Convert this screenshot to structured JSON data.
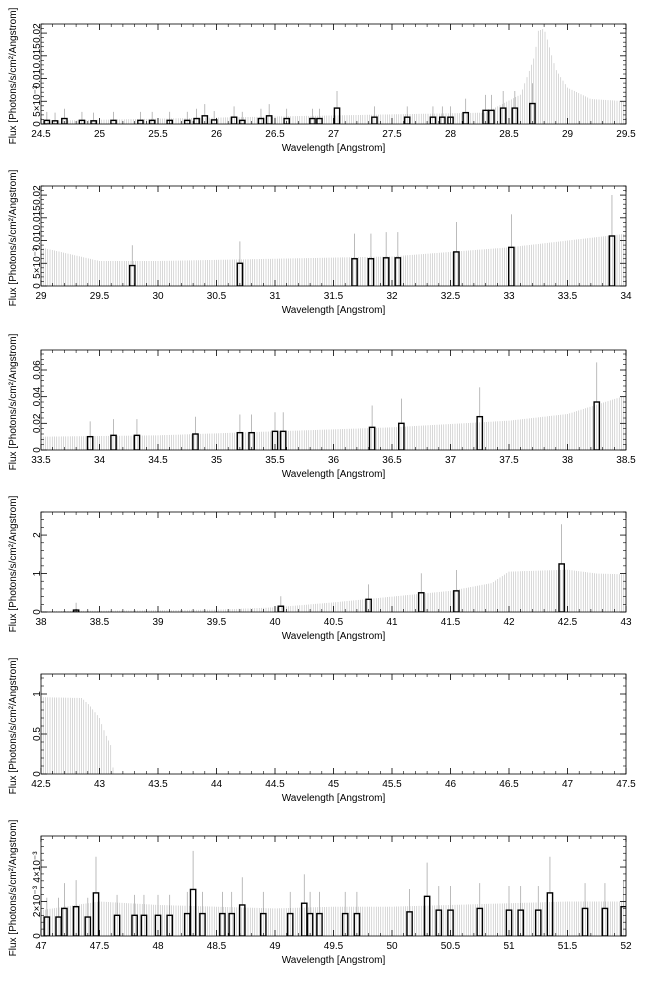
{
  "chart_data": [
    {
      "type": "bar",
      "xlim": [
        24.5,
        29.5
      ],
      "ylim": [
        0,
        0.022
      ],
      "xticks": [
        "24.5",
        "25",
        "25.5",
        "26",
        "26.5",
        "27",
        "27.5",
        "28",
        "28.5",
        "29",
        "29.5"
      ],
      "yticks": [
        "0",
        "5×10⁻³",
        "0.01",
        "0.015",
        "0.02"
      ],
      "xlabel": "Wavelength [Angstrom]",
      "ylabel": "Flux [Photons/s/cm²/Angstrom]",
      "bars": [
        [
          24.55,
          0.0008
        ],
        [
          24.62,
          0.0007
        ],
        [
          24.7,
          0.0012
        ],
        [
          24.85,
          0.0008
        ],
        [
          24.95,
          0.0007
        ],
        [
          25.12,
          0.0008
        ],
        [
          25.35,
          0.0008
        ],
        [
          25.45,
          0.0008
        ],
        [
          25.6,
          0.0008
        ],
        [
          25.75,
          0.0008
        ],
        [
          25.83,
          0.0012
        ],
        [
          25.9,
          0.0018
        ],
        [
          25.98,
          0.0009
        ],
        [
          26.15,
          0.0015
        ],
        [
          26.22,
          0.0008
        ],
        [
          26.38,
          0.0012
        ],
        [
          26.45,
          0.0018
        ],
        [
          26.6,
          0.0012
        ],
        [
          26.82,
          0.0012
        ],
        [
          26.88,
          0.0012
        ],
        [
          27.03,
          0.0035
        ],
        [
          27.35,
          0.0015
        ],
        [
          27.63,
          0.0015
        ],
        [
          27.85,
          0.0015
        ],
        [
          27.93,
          0.0015
        ],
        [
          28.0,
          0.0015
        ],
        [
          28.13,
          0.0025
        ],
        [
          28.3,
          0.003
        ],
        [
          28.35,
          0.003
        ],
        [
          28.45,
          0.0035
        ],
        [
          28.55,
          0.0035
        ],
        [
          28.7,
          0.0045
        ]
      ],
      "error_envelope": [
        [
          24.5,
          0.0007
        ],
        [
          28.3,
          0.0025
        ],
        [
          28.6,
          0.0065
        ],
        [
          28.72,
          0.015
        ],
        [
          28.75,
          0.0205
        ],
        [
          28.8,
          0.021
        ],
        [
          28.9,
          0.012
        ],
        [
          29.0,
          0.008
        ],
        [
          29.2,
          0.0055
        ],
        [
          29.5,
          0.005
        ]
      ]
    },
    {
      "type": "bar",
      "xlim": [
        29,
        34
      ],
      "ylim": [
        0,
        0.022
      ],
      "xticks": [
        "29",
        "29.5",
        "30",
        "30.5",
        "31",
        "31.5",
        "32",
        "32.5",
        "33",
        "33.5",
        "34"
      ],
      "yticks": [
        "0",
        "5×10⁻³",
        "0.01",
        "0.015",
        "0.02"
      ],
      "xlabel": "Wavelength [Angstrom]",
      "ylabel": "Flux [Photons/s/cm²/Angstrom]",
      "bars": [
        [
          29.78,
          0.0045
        ],
        [
          30.7,
          0.005
        ],
        [
          31.68,
          0.006
        ],
        [
          31.82,
          0.006
        ],
        [
          31.95,
          0.0062
        ],
        [
          32.05,
          0.0062
        ],
        [
          32.55,
          0.0075
        ],
        [
          33.02,
          0.0085
        ],
        [
          33.88,
          0.011
        ]
      ],
      "error_envelope": [
        [
          29.0,
          0.0085
        ],
        [
          29.5,
          0.0055
        ],
        [
          30.0,
          0.0055
        ],
        [
          31.0,
          0.006
        ],
        [
          32.0,
          0.0065
        ],
        [
          33.0,
          0.0085
        ],
        [
          34.0,
          0.0115
        ]
      ]
    },
    {
      "type": "bar",
      "xlim": [
        33.5,
        38.5
      ],
      "ylim": [
        0,
        0.075
      ],
      "xticks": [
        "33.5",
        "34",
        "34.5",
        "35",
        "35.5",
        "36",
        "36.5",
        "37",
        "37.5",
        "38",
        "38.5"
      ],
      "yticks": [
        "0",
        "0.02",
        "0.04",
        "0.06"
      ],
      "xlabel": "Wavelength [Angstrom]",
      "ylabel": "Flux [Photons/s/cm²/Angstrom]",
      "bars": [
        [
          33.92,
          0.01
        ],
        [
          34.12,
          0.011
        ],
        [
          34.32,
          0.011
        ],
        [
          34.82,
          0.012
        ],
        [
          35.2,
          0.013
        ],
        [
          35.3,
          0.013
        ],
        [
          35.5,
          0.014
        ],
        [
          35.57,
          0.014
        ],
        [
          36.33,
          0.017
        ],
        [
          36.58,
          0.02
        ],
        [
          37.25,
          0.025
        ],
        [
          38.25,
          0.036
        ]
      ],
      "error_envelope": [
        [
          33.5,
          0.01
        ],
        [
          34.5,
          0.011
        ],
        [
          35.5,
          0.014
        ],
        [
          36.5,
          0.017
        ],
        [
          37.5,
          0.022
        ],
        [
          38.0,
          0.027
        ],
        [
          38.5,
          0.041
        ]
      ]
    },
    {
      "type": "bar",
      "xlim": [
        38,
        43
      ],
      "ylim": [
        0,
        2.6
      ],
      "xticks": [
        "38",
        "38.5",
        "39",
        "39.5",
        "40",
        "40.5",
        "41",
        "41.5",
        "42",
        "42.5",
        "43"
      ],
      "yticks": [
        "0",
        "1",
        "2"
      ],
      "xlabel": "Wavelength [Angstrom]",
      "ylabel": "Flux [Photons/s/cm²/Angstrom]",
      "bars": [
        [
          38.3,
          0.05
        ],
        [
          40.05,
          0.15
        ],
        [
          40.8,
          0.33
        ],
        [
          41.25,
          0.5
        ],
        [
          41.55,
          0.55
        ],
        [
          42.45,
          1.25
        ]
      ],
      "error_envelope": [
        [
          38.0,
          0.02
        ],
        [
          39.5,
          0.06
        ],
        [
          40.0,
          0.12
        ],
        [
          40.5,
          0.25
        ],
        [
          41.0,
          0.4
        ],
        [
          41.5,
          0.55
        ],
        [
          41.85,
          0.75
        ],
        [
          42.0,
          1.05
        ],
        [
          42.5,
          1.1
        ],
        [
          42.75,
          1.0
        ],
        [
          43.0,
          0.98
        ]
      ]
    },
    {
      "type": "bar",
      "xlim": [
        42.5,
        47.5
      ],
      "ylim": [
        0,
        1.25
      ],
      "xticks": [
        "42.5",
        "43",
        "43.5",
        "44",
        "44.5",
        "45",
        "45.5",
        "46",
        "46.5",
        "47",
        "47.5"
      ],
      "yticks": [
        "0",
        "0.5",
        "1"
      ],
      "xlabel": "Wavelength [Angstrom]",
      "ylabel": "Flux [Photons/s/cm²/Angstrom]",
      "bars": [],
      "error_envelope": [
        [
          42.5,
          0.96
        ],
        [
          42.85,
          0.95
        ],
        [
          42.92,
          0.85
        ],
        [
          43.0,
          0.7
        ],
        [
          43.05,
          0.5
        ],
        [
          43.1,
          0.35
        ],
        [
          43.12,
          0.0
        ]
      ]
    },
    {
      "type": "bar",
      "xlim": [
        47,
        52
      ],
      "ylim": [
        0,
        0.0058
      ],
      "xticks": [
        "47",
        "47.5",
        "48",
        "48.5",
        "49",
        "49.5",
        "50",
        "50.5",
        "51",
        "51.5",
        "52"
      ],
      "yticks": [
        "0",
        "2×10⁻³",
        "4×10⁻³"
      ],
      "xlabel": "Wavelength [Angstrom]",
      "ylabel": "Flux [Photons/s/cm²/Angstrom]",
      "bars": [
        [
          47.05,
          0.0011
        ],
        [
          47.15,
          0.0011
        ],
        [
          47.2,
          0.0016
        ],
        [
          47.3,
          0.0017
        ],
        [
          47.4,
          0.0011
        ],
        [
          47.47,
          0.0025
        ],
        [
          47.65,
          0.0012
        ],
        [
          47.8,
          0.0012
        ],
        [
          47.88,
          0.0012
        ],
        [
          48.0,
          0.0012
        ],
        [
          48.1,
          0.0012
        ],
        [
          48.25,
          0.0013
        ],
        [
          48.3,
          0.0027
        ],
        [
          48.38,
          0.0013
        ],
        [
          48.55,
          0.0013
        ],
        [
          48.63,
          0.0013
        ],
        [
          48.72,
          0.0018
        ],
        [
          48.9,
          0.0013
        ],
        [
          49.13,
          0.0013
        ],
        [
          49.25,
          0.0019
        ],
        [
          49.3,
          0.0013
        ],
        [
          49.38,
          0.0013
        ],
        [
          49.6,
          0.0013
        ],
        [
          49.7,
          0.0013
        ],
        [
          50.15,
          0.0014
        ],
        [
          50.3,
          0.0023
        ],
        [
          50.4,
          0.0015
        ],
        [
          50.5,
          0.0015
        ],
        [
          50.75,
          0.0016
        ],
        [
          51.0,
          0.0015
        ],
        [
          51.1,
          0.0015
        ],
        [
          51.25,
          0.0015
        ],
        [
          51.35,
          0.0025
        ],
        [
          51.65,
          0.0016
        ],
        [
          51.82,
          0.0016
        ],
        [
          51.98,
          0.0017
        ]
      ],
      "error_envelope": [
        [
          47.0,
          0.0015
        ],
        [
          47.5,
          0.002
        ],
        [
          48.0,
          0.0018
        ],
        [
          48.5,
          0.0017
        ],
        [
          49.0,
          0.0016
        ],
        [
          49.5,
          0.0017
        ],
        [
          50.0,
          0.0017
        ],
        [
          50.5,
          0.0018
        ],
        [
          51.0,
          0.0019
        ],
        [
          51.5,
          0.002
        ],
        [
          52.0,
          0.002
        ]
      ]
    }
  ]
}
